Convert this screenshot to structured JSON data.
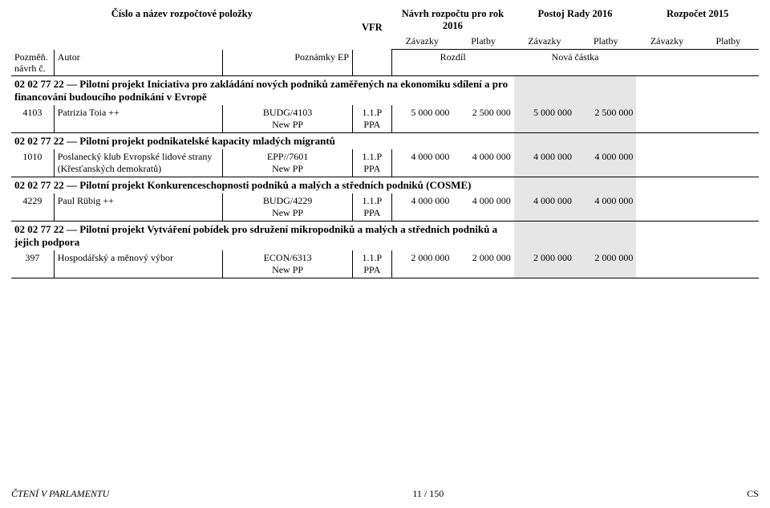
{
  "header": {
    "item_label": "Číslo a název rozpočtové položky",
    "vfr": "VFR",
    "col_draft": "Návrh rozpočtu pro rok 2016",
    "col_council": "Postoj Rady 2016",
    "col_budget": "Rozpočet 2015",
    "sub_commit": "Závazky",
    "sub_pay": "Platby",
    "left1": "Pozměň. návrh č.",
    "left2": "Autor",
    "left3": "Poznámky EP",
    "diff": "Rozdíl",
    "new_amt": "Nová částka"
  },
  "sections": [
    {
      "title": "02 02 77 22 — Pilotní projekt Iniciativa pro zakládání nových podniků zaměřených na ekonomiku sdílení a pro financování budoucího podnikání v Evropě",
      "rows": [
        {
          "no": "4103",
          "author": "Patrizia Toia ++",
          "code": "BUDG/4103\nNew PP",
          "vfr": "1.1.P\nPPA",
          "d1": "5 000 000",
          "d2": "2 500 000",
          "n1": "5 000 000",
          "n2": "2 500 000"
        }
      ]
    },
    {
      "title": "02 02 77 22 — Pilotní projekt podnikatelské kapacity mladých migrantů",
      "rows": [
        {
          "no": "1010",
          "author": "Poslanecký klub Evropské lidové strany (Křesťanských demokratů)",
          "code": "EPP//7601\nNew PP",
          "vfr": "1.1.P\nPPA",
          "d1": "4 000 000",
          "d2": "4 000 000",
          "n1": "4 000 000",
          "n2": "4 000 000"
        }
      ]
    },
    {
      "title": "02 02 77 22 — Pilotní projekt Konkurenceschopnosti podniků a malých a středních podniků (COSME)",
      "rows": [
        {
          "no": "4229",
          "author": "Paul Rübig ++",
          "code": "BUDG/4229\nNew PP",
          "vfr": "1.1.P\nPPA",
          "d1": "4 000 000",
          "d2": "4 000 000",
          "n1": "4 000 000",
          "n2": "4 000 000"
        }
      ]
    },
    {
      "title": "02 02 77 22 — Pilotní projekt Vytváření pobídek pro sdružení mikropodniků a malých a středních podniků a jejich podpora",
      "rows": [
        {
          "no": "397",
          "author": "Hospodářský a měnový výbor",
          "code": "ECON/6313\nNew PP",
          "vfr": "1.1.P\nPPA",
          "d1": "2 000 000",
          "d2": "2 000 000",
          "n1": "2 000 000",
          "n2": "2 000 000"
        }
      ]
    }
  ],
  "footer": {
    "left": "ČTENÍ V PARLAMENTU",
    "center": "11 / 150",
    "right": "CS"
  },
  "colors": {
    "shade": "#e6e6e6",
    "text": "#000000",
    "bg": "#ffffff"
  }
}
